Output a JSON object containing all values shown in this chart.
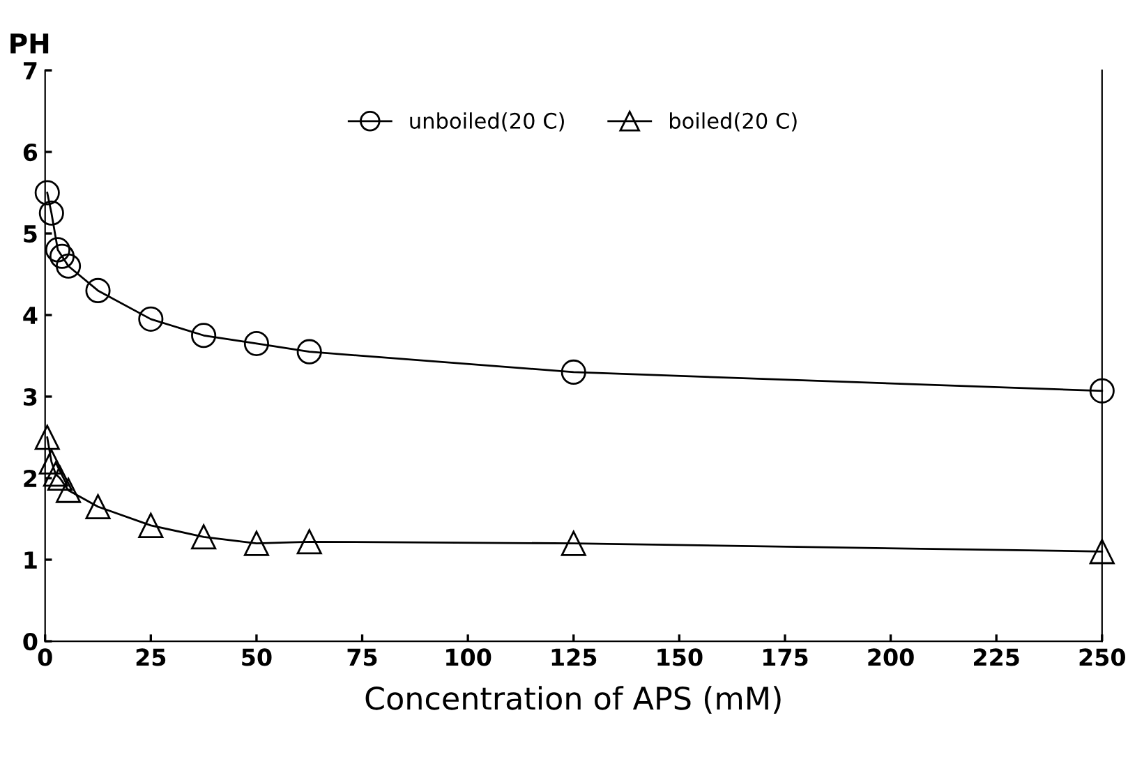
{
  "chart_data": {
    "type": "line",
    "xlabel": "Concentration of APS (mM)",
    "ylabel": "PH",
    "xlim": [
      0,
      250
    ],
    "ylim": [
      0,
      7
    ],
    "xticks": [
      0,
      25,
      50,
      75,
      100,
      125,
      150,
      175,
      200,
      225,
      250
    ],
    "yticks": [
      0,
      1,
      2,
      3,
      4,
      5,
      6,
      7
    ],
    "grid": false,
    "legend": "top",
    "line_style": "solid",
    "series": [
      {
        "name": "unboiled(20 C)",
        "color": "#000000",
        "marker": "circle",
        "x": [
          0.5,
          1.5,
          3,
          4,
          5.5,
          12.5,
          25,
          37.5,
          50,
          62.5,
          125,
          250
        ],
        "values": [
          5.5,
          5.25,
          4.8,
          4.72,
          4.6,
          4.3,
          3.95,
          3.75,
          3.65,
          3.55,
          3.3,
          3.07
        ]
      },
      {
        "name": "boiled(20 C)",
        "color": "#000000",
        "marker": "triangle",
        "x": [
          0.5,
          1.5,
          2.5,
          3.5,
          5.5,
          12.5,
          25,
          37.5,
          50,
          62.5,
          125,
          250
        ],
        "values": [
          2.5,
          2.2,
          2.05,
          2.0,
          1.85,
          1.65,
          1.42,
          1.28,
          1.2,
          1.22,
          1.2,
          1.1
        ]
      }
    ]
  }
}
